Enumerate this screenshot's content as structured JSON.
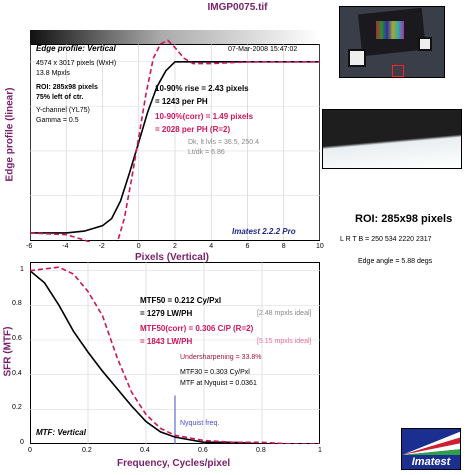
{
  "title": "IMGP0075.tif",
  "edge": {
    "panel_title": "Edge profile: Vertical",
    "date": "07-Mar-2008 15:47:02",
    "info": [
      "4574 x 3017 pixels (WxH)",
      "13.8 Mpxls"
    ],
    "roi": [
      "ROI: 285x98 pixels",
      "75% left of ctr."
    ],
    "channel": [
      "Y-channel (YL75)",
      "Gamma = 0.5"
    ],
    "rise1": "10-90% rise = 2.43 pixels",
    "rise2": "= 1243 per PH",
    "corr1": "10-90%(corr) = 1.49 pixels",
    "corr2": "= 2028 per PH  (R=2)",
    "dk": "Dk, lt lvls = 36.5, 250.4",
    "ltdk": "Lt/dk = 6.86",
    "version": "Imatest 2.2.2 Pro",
    "ylabel": "Edge profile (linear)",
    "xlabel": "Pixels (Vertical)",
    "xticks": [
      "-6",
      "-4",
      "-2",
      "0",
      "2",
      "4",
      "6",
      "8",
      "10"
    ]
  },
  "roi_side": {
    "title": "ROI: 285x98 pixels",
    "coords": "L R T B = 250 534   2220 2317",
    "angle": "Edge angle = 5.88 degs"
  },
  "mtf": {
    "panel_title": "MTF: Vertical",
    "mtf50a": "MTF50 = 0.212 Cy/Pxl",
    "mtf50b": "= 1279 LW/PH",
    "ideal1": "[2.48 mpxls ideal]",
    "mtf50ca": "MTF50(corr) = 0.306 C/P  (R=2)",
    "mtf50cb": "= 1843 LW/PH",
    "ideal2": "[5.15 mpxls ideal]",
    "under": "Undersharpening = 33.8%",
    "mtf30": "MTF30 = 0.303 Cy/Pxl",
    "nyq": "MTF at Nyquist = 0.0361",
    "nyq_label": "Nyquist freq.",
    "ylabel": "SFR (MTF)",
    "xlabel": "Frequency, Cycles/pixel",
    "xticks": [
      "0",
      "0.2",
      "0.4",
      "0.6",
      "0.8",
      "1"
    ],
    "yticks": [
      "0",
      "0.2",
      "0.4",
      "0.6",
      "0.8",
      "1"
    ]
  },
  "logo": "Imatest",
  "colors": {
    "accent": "#7a1f6a",
    "corr": "#d0145c",
    "navy": "#1b2a8a"
  },
  "chart_data": [
    {
      "type": "line",
      "title": "Edge profile: Vertical",
      "xlabel": "Pixels (Vertical)",
      "ylabel": "Edge profile (linear)",
      "xlim": [
        -6,
        10
      ],
      "ylim": [
        0,
        1.1
      ],
      "series": [
        {
          "x": [
            -6,
            -4,
            -3,
            -2,
            -1.5,
            -1,
            -0.5,
            0,
            0.5,
            1,
            1.5,
            2,
            3,
            4,
            6,
            10
          ],
          "y": [
            0.04,
            0.04,
            0.05,
            0.08,
            0.12,
            0.22,
            0.38,
            0.55,
            0.72,
            0.86,
            0.95,
            1.0,
            1.0,
            1.0,
            1.0,
            1.0
          ]
        },
        {
          "x": [
            -6,
            -4,
            -3,
            -2,
            -1.6,
            -1.2,
            -0.8,
            -0.4,
            0,
            0.4,
            0.8,
            1.2,
            1.6,
            2,
            2.5,
            3,
            4,
            6,
            10
          ],
          "y": [
            0.04,
            0.03,
            0.0,
            -0.04,
            -0.05,
            -0.02,
            0.12,
            0.34,
            0.58,
            0.82,
            1.02,
            1.1,
            1.12,
            1.08,
            1.02,
            0.99,
            0.99,
            1.0,
            1.0
          ]
        }
      ]
    },
    {
      "type": "line",
      "title": "MTF: Vertical",
      "xlabel": "Frequency, Cycles/pixel",
      "ylabel": "SFR (MTF)",
      "xlim": [
        0,
        1
      ],
      "ylim": [
        0,
        1.05
      ],
      "series": [
        {
          "x": [
            0,
            0.05,
            0.1,
            0.15,
            0.2,
            0.25,
            0.3,
            0.35,
            0.4,
            0.45,
            0.5,
            0.6,
            0.7,
            0.8,
            0.9,
            1
          ],
          "y": [
            1.0,
            0.93,
            0.8,
            0.65,
            0.53,
            0.42,
            0.32,
            0.22,
            0.13,
            0.07,
            0.04,
            0.01,
            0.01,
            0.0,
            0.0,
            0.0
          ]
        },
        {
          "x": [
            0,
            0.05,
            0.1,
            0.15,
            0.2,
            0.25,
            0.3,
            0.35,
            0.4,
            0.45,
            0.5,
            0.6,
            0.7,
            0.8,
            0.9,
            1
          ],
          "y": [
            1.0,
            1.01,
            1.02,
            0.98,
            0.88,
            0.74,
            0.5,
            0.3,
            0.17,
            0.09,
            0.05,
            0.02,
            0.01,
            0.01,
            0.0,
            0.0
          ]
        }
      ]
    }
  ]
}
